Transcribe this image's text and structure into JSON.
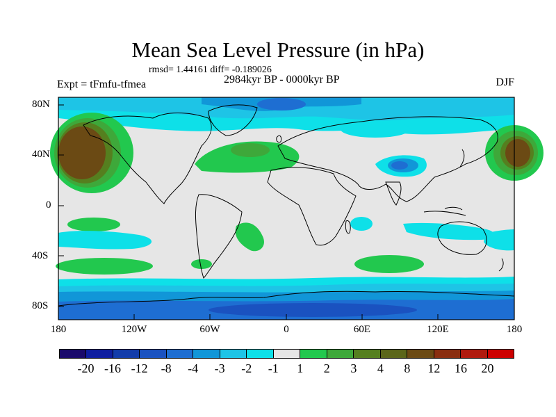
{
  "title": "Mean Sea Level Pressure (in hPa)",
  "stats": "rmsd= 1.44161 diff= -0.189026",
  "experiment": "Expt = tFmfu-tfmea",
  "period": "2984kyr BP - 0000kyr BP",
  "season": "DJF",
  "y_axis": [
    "80N",
    "40N",
    "0",
    "40S",
    "80S"
  ],
  "x_axis": [
    "180",
    "120W",
    "60W",
    "0",
    "60E",
    "120E",
    "180"
  ],
  "colorbar": {
    "colors": [
      "#1a0a6b",
      "#0f1ea0",
      "#123caa",
      "#1a52c0",
      "#1e6ed2",
      "#1196d8",
      "#1ec4e6",
      "#0ee0e8",
      "#e6e6e6",
      "#22c84e",
      "#3ea83a",
      "#557f1f",
      "#5b661a",
      "#6b4a14",
      "#8a2e10",
      "#b01a0e",
      "#cc0000"
    ],
    "labels": [
      "-20",
      "-16",
      "-12",
      "-8",
      "-4",
      "-3",
      "-2",
      "-1",
      "1",
      "2",
      "3",
      "4",
      "8",
      "12",
      "16",
      "20"
    ]
  }
}
